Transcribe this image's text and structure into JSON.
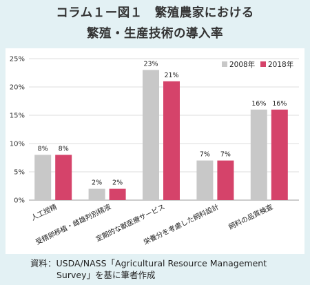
{
  "header": {
    "title_line1": "コラム１ー図１　繁殖農家における",
    "title_line2": "繁殖・生産技術の導入率"
  },
  "source": {
    "line1": "資料：USDA/NASS「Agricultural Resource Management",
    "line2": "Survey」を基に筆者作成"
  },
  "chart_data": {
    "type": "bar",
    "categories": [
      "人工授精",
      "受精卵移植・雌雄判別精液",
      "定期的な獣医療サービス",
      "栄養分を考慮した飼料設計",
      "飼料の品質検査"
    ],
    "series": [
      {
        "name": "2008年",
        "values": [
          8,
          2,
          23,
          7,
          16
        ],
        "labels": [
          "8%",
          "2%",
          "23%",
          "7%",
          "16%"
        ],
        "color": "#c8c8c8"
      },
      {
        "name": "2018年",
        "values": [
          8,
          2,
          21,
          7,
          16
        ],
        "labels": [
          "8%",
          "2%",
          "21%",
          "7%",
          "16%"
        ],
        "color": "#d5436a"
      }
    ],
    "yticks": [
      0,
      5,
      10,
      15,
      20,
      25
    ],
    "ytick_labels": [
      "0%",
      "5%",
      "10%",
      "15%",
      "20%",
      "25%"
    ],
    "ylim": [
      0,
      25
    ],
    "grid": true,
    "legend": "top-right"
  }
}
